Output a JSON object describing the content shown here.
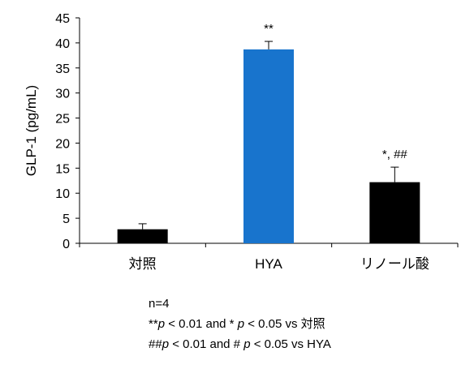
{
  "chart_data": {
    "type": "bar",
    "categories": [
      "対照",
      "HYA",
      "リノール酸"
    ],
    "values": [
      2.8,
      38.7,
      12.2
    ],
    "errors": [
      1.1,
      1.6,
      3.0
    ],
    "bar_colors": [
      "#000000",
      "#1874CD",
      "#000000"
    ],
    "significance": [
      "",
      "**",
      "*, ##"
    ],
    "ylabel": "GLP-1 (pg/mL)",
    "ylim": [
      0,
      45
    ],
    "yticks": [
      0,
      5,
      10,
      15,
      20,
      25,
      30,
      35,
      40,
      45
    ],
    "grid": false
  },
  "notes": {
    "n": "n=4",
    "line1": {
      "a": "**",
      "b": "p",
      "c": " < 0.01 and * ",
      "d": "p",
      "e": " < 0.05 vs 対照"
    },
    "line2": {
      "a": "##",
      "b": "p",
      "c": " < 0.01 and # ",
      "d": "p",
      "e": " < 0.05 vs HYA"
    }
  }
}
